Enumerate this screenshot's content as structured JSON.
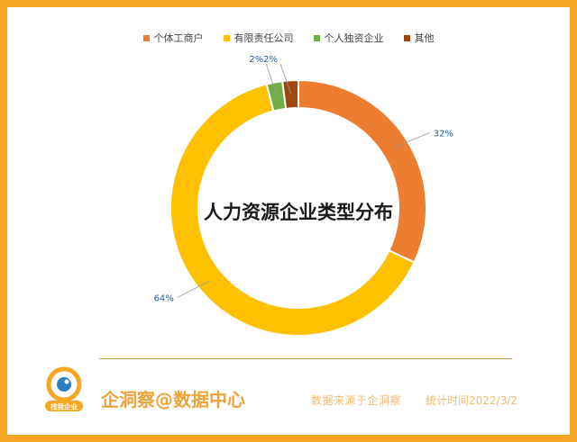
{
  "chart_data": {
    "type": "pie",
    "variant": "donut",
    "title": "人力资源企业类型分布",
    "series": [
      {
        "name": "个体工商户",
        "value": 32,
        "label": "32%",
        "color": "#ED7D31"
      },
      {
        "name": "有限责任公司",
        "value": 64,
        "label": "64%",
        "color": "#FFC000"
      },
      {
        "name": "个人独资企业",
        "value": 2,
        "label": "2%",
        "color": "#70AD47"
      },
      {
        "name": "其他",
        "value": 2,
        "label": "2%",
        "color": "#9E480E"
      }
    ],
    "legend_position": "top"
  },
  "footer": {
    "logo_badge": "找我企业",
    "brand": "企洞察@数据中心",
    "source": "数据来源于企洞察",
    "date": "统计时间2022/3/2"
  },
  "colors": {
    "frame": "#F5A623",
    "accent": "#F0A23A",
    "label_text": "#1F5B9A"
  }
}
